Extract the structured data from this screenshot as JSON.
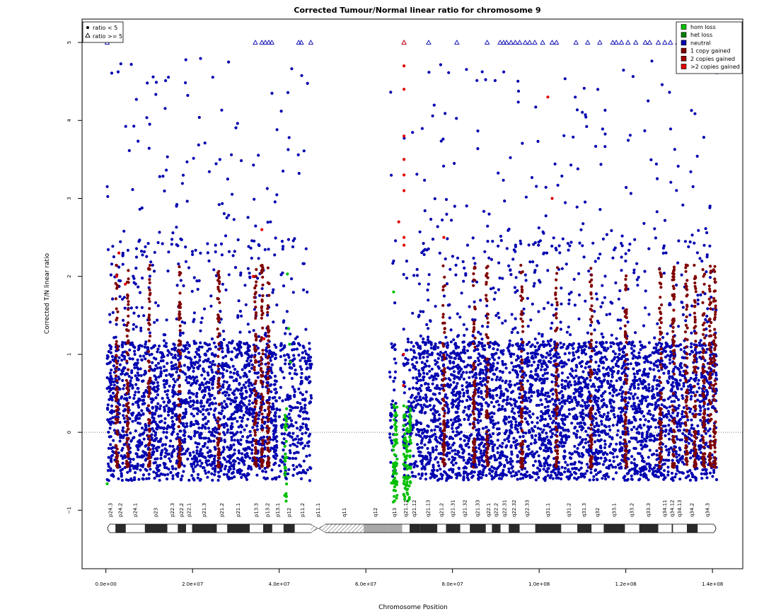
{
  "chart_data": {
    "type": "scatter",
    "title": "Corrected Tumour/Normal linear ratio for chromosome  9",
    "xlabel": "Chromosome Position",
    "ylabel": "Corrected T/N linear ratio",
    "xlim": [
      -5500000,
      147000000
    ],
    "ylim": [
      -1.75,
      5.3
    ],
    "x_ticks": [
      0,
      20000000,
      40000000,
      60000000,
      80000000,
      100000000,
      120000000,
      140000000
    ],
    "x_tick_labels": [
      "0.0e+00",
      "2.0e+07",
      "4.0e+07",
      "6.0e+07",
      "8.0e+07",
      "1.0e+08",
      "1.2e+08",
      "1.4e+08"
    ],
    "y_ticks": [
      -1,
      0,
      1,
      2,
      3,
      4,
      5
    ],
    "y_tick_labels": [
      "−1",
      "0",
      "1",
      "2",
      "3",
      "4",
      "5"
    ],
    "reference_line_y": 0,
    "cap_value": 5,
    "legend_shape": {
      "placement": "top-left",
      "items": [
        {
          "label": "ratio < 5",
          "marker": "filled-circle"
        },
        {
          "label": "ratio >= 5",
          "marker": "open-triangle"
        }
      ]
    },
    "legend_state": {
      "placement": "top-right",
      "items": [
        {
          "label": "hom loss",
          "color": "#00c000"
        },
        {
          "label": "het loss",
          "color": "#008000"
        },
        {
          "label": "neutral",
          "color": "#0000b0"
        },
        {
          "label": "1 copy gained",
          "color": "#800000"
        },
        {
          "label": "2 copies gained",
          "color": "#a00000"
        },
        {
          "label": ">2 copies gained",
          "color": "#e00000"
        }
      ]
    },
    "series": [
      {
        "name": "neutral",
        "color": "#0000b0",
        "segments": [
          [
            300000,
            39500000,
            1.0
          ],
          [
            40000000,
            47500000,
            0.7
          ],
          [
            65500000,
            67000000,
            0.6
          ],
          [
            68500000,
            71500000,
            0.6
          ],
          [
            71500000,
            141000000,
            1.0
          ]
        ]
      },
      {
        "name": "1 copy gained",
        "color": "#800000",
        "columns": [
          2500000,
          5000000,
          10000000,
          17000000,
          26000000,
          34500000,
          36000000,
          37500000,
          78000000,
          85000000,
          88000000,
          96000000,
          104000000,
          112000000,
          120000000,
          128000000,
          131000000,
          134000000,
          136000000,
          138000000,
          139500000,
          140500000
        ]
      },
      {
        "name": ">2 copies gained",
        "color": "#e00000",
        "points": [
          [
            3000000,
            2.3
          ],
          [
            2500000,
            2.0
          ],
          [
            4500000,
            1.9
          ],
          [
            36000000,
            2.6
          ],
          [
            68800000,
            4.7
          ],
          [
            68800000,
            4.4
          ],
          [
            68800000,
            3.8
          ],
          [
            68800000,
            3.5
          ],
          [
            68800000,
            3.3
          ],
          [
            68800000,
            3.1
          ],
          [
            68800000,
            2.5
          ],
          [
            68800000,
            2.4
          ],
          [
            67600000,
            2.7
          ],
          [
            78000000,
            2.5
          ],
          [
            102000000,
            4.3
          ],
          [
            103000000,
            3.0
          ],
          [
            34000000,
            2.0
          ],
          [
            36500000,
            1.2
          ],
          [
            68700000,
            1.0
          ],
          [
            68700000,
            0.6
          ]
        ]
      },
      {
        "name": "hom loss",
        "color": "#00c000",
        "columns": [
          41500000,
          66500000,
          67000000,
          68900000,
          69500000,
          70200000
        ]
      },
      {
        "name": "triangles (ratio >= 5)",
        "color": "#0000b0",
        "marker": "open-triangle",
        "x": [
          300000,
          34500000,
          36000000,
          36800000,
          37600000,
          38300000,
          44500000,
          45100000,
          47300000,
          68800000,
          74500000,
          81000000,
          88000000,
          91000000,
          91800000,
          92500000,
          93500000,
          94500000,
          95500000,
          96800000,
          97800000,
          99000000,
          100800000,
          103000000,
          104000000,
          108500000,
          111200000,
          114000000,
          117000000,
          117800000,
          119000000,
          120500000,
          122300000,
          124500000,
          125500000,
          127500000,
          129000000,
          130300000,
          132000000,
          133500000,
          135000000,
          136200000,
          137300000,
          138500000,
          139500000,
          140500000
        ]
      },
      {
        "name": "triangles (ratio >= 5, gained)",
        "color": "#e00000",
        "marker": "open-triangle",
        "x": [
          68800000
        ]
      }
    ],
    "cytobands": [
      {
        "name": "p24.3",
        "start": 0,
        "end": 2200000,
        "stain": "gneg"
      },
      {
        "name": "p24.2",
        "start": 2200000,
        "end": 4600000,
        "stain": "gpos"
      },
      {
        "name": "p24.1",
        "start": 4600000,
        "end": 9000000,
        "stain": "gneg"
      },
      {
        "name": "p23",
        "start": 9000000,
        "end": 14200000,
        "stain": "gpos"
      },
      {
        "name": "p22.3",
        "start": 14200000,
        "end": 16600000,
        "stain": "gneg"
      },
      {
        "name": "p22.2",
        "start": 16600000,
        "end": 18500000,
        "stain": "gpos"
      },
      {
        "name": "p22.1",
        "start": 18500000,
        "end": 19900000,
        "stain": "gneg"
      },
      {
        "name": "p21.3",
        "start": 19900000,
        "end": 25600000,
        "stain": "gpos"
      },
      {
        "name": "p21.2",
        "start": 25600000,
        "end": 28000000,
        "stain": "gneg"
      },
      {
        "name": "p21.1",
        "start": 28000000,
        "end": 33200000,
        "stain": "gpos"
      },
      {
        "name": "p13.3",
        "start": 33200000,
        "end": 36300000,
        "stain": "gneg"
      },
      {
        "name": "p13.2",
        "start": 36300000,
        "end": 38400000,
        "stain": "gpos"
      },
      {
        "name": "p13.1",
        "start": 38400000,
        "end": 41000000,
        "stain": "gneg"
      },
      {
        "name": "p12",
        "start": 41000000,
        "end": 43600000,
        "stain": "gpos"
      },
      {
        "name": "p11.2",
        "start": 43600000,
        "end": 47300000,
        "stain": "gneg"
      },
      {
        "name": "p11.1",
        "start": 47300000,
        "end": 50700000,
        "stain": "acen"
      },
      {
        "name": "q11",
        "start": 50700000,
        "end": 59500000,
        "stain": "acen"
      },
      {
        "name": "q12",
        "start": 59500000,
        "end": 65000000,
        "stain": "gvar"
      },
      {
        "name": "q13",
        "start": 65000000,
        "end": 68400000,
        "stain": "gvar"
      },
      {
        "name": "q21.11",
        "start": 68400000,
        "end": 70100000,
        "stain": "gneg"
      },
      {
        "name": "q21.12",
        "start": 70100000,
        "end": 72400000,
        "stain": "gpos"
      },
      {
        "name": "q21.13",
        "start": 72400000,
        "end": 76500000,
        "stain": "gpos"
      },
      {
        "name": "q21.2",
        "start": 76500000,
        "end": 78500000,
        "stain": "gneg"
      },
      {
        "name": "q21.31",
        "start": 78500000,
        "end": 81800000,
        "stain": "gpos"
      },
      {
        "name": "q21.32",
        "start": 81800000,
        "end": 84000000,
        "stain": "gneg"
      },
      {
        "name": "q21.33",
        "start": 84000000,
        "end": 87700000,
        "stain": "gpos"
      },
      {
        "name": "q22.1",
        "start": 87700000,
        "end": 89100000,
        "stain": "gneg"
      },
      {
        "name": "q22.2",
        "start": 89100000,
        "end": 91100000,
        "stain": "gpos"
      },
      {
        "name": "q22.31",
        "start": 91100000,
        "end": 93000000,
        "stain": "gneg"
      },
      {
        "name": "q22.32",
        "start": 93000000,
        "end": 95500000,
        "stain": "gpos"
      },
      {
        "name": "q22.33",
        "start": 95500000,
        "end": 99100000,
        "stain": "gneg"
      },
      {
        "name": "q31.1",
        "start": 99100000,
        "end": 105100000,
        "stain": "gpos"
      },
      {
        "name": "q31.2",
        "start": 105100000,
        "end": 108800000,
        "stain": "gneg"
      },
      {
        "name": "q31.3",
        "start": 108800000,
        "end": 112100000,
        "stain": "gpos"
      },
      {
        "name": "q32",
        "start": 112100000,
        "end": 114900000,
        "stain": "gneg"
      },
      {
        "name": "q33.1",
        "start": 114900000,
        "end": 119800000,
        "stain": "gpos"
      },
      {
        "name": "q33.2",
        "start": 119800000,
        "end": 123100000,
        "stain": "gneg"
      },
      {
        "name": "q33.3",
        "start": 123100000,
        "end": 127500000,
        "stain": "gpos"
      },
      {
        "name": "q34.11",
        "start": 127500000,
        "end": 130600000,
        "stain": "gneg"
      },
      {
        "name": "q34.12",
        "start": 130600000,
        "end": 130900000,
        "stain": "gpos"
      },
      {
        "name": "q34.13",
        "start": 130900000,
        "end": 134100000,
        "stain": "gneg"
      },
      {
        "name": "q34.2",
        "start": 134100000,
        "end": 136600000,
        "stain": "gpos"
      },
      {
        "name": "q34.3",
        "start": 136600000,
        "end": 141200000,
        "stain": "gneg"
      }
    ]
  }
}
